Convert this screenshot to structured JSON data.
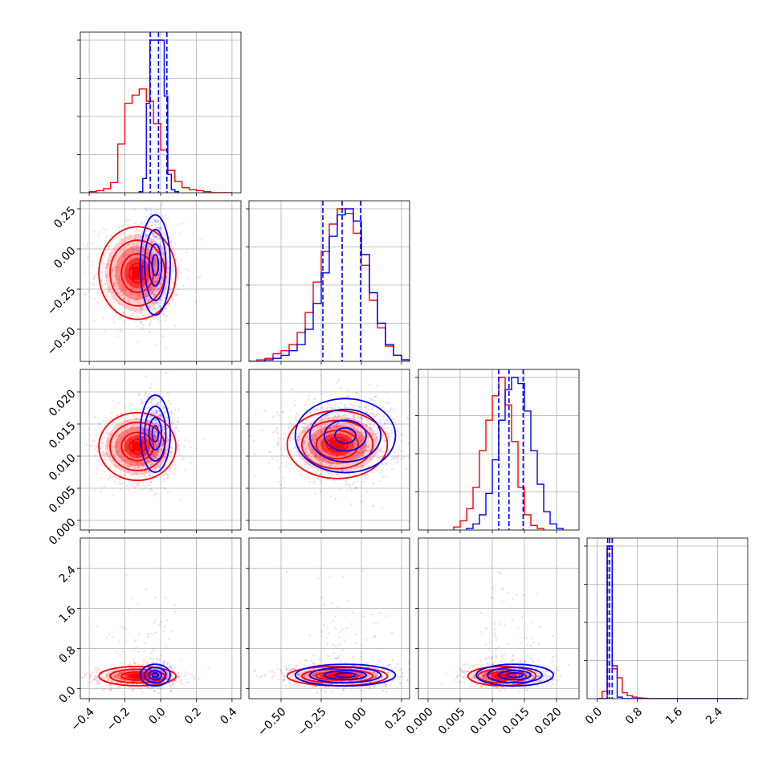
{
  "colors": {
    "red": "#ff0000",
    "blue": "#0000ff",
    "grid": "#b0b0b0"
  },
  "chart_data": {
    "type": "scatter",
    "subtype": "corner-plot",
    "grid": true,
    "series": [
      {
        "color": "#ff0000"
      },
      {
        "color": "#0000ff"
      }
    ],
    "axes_ticks": {
      "p1": {
        "range": [
          -0.45,
          0.45
        ],
        "ticks": [
          -0.4,
          -0.2,
          0.0,
          0.2,
          0.4
        ],
        "tick_labels": [
          "−0.4",
          "−0.2",
          "0.0",
          "0.2",
          "0.4"
        ]
      },
      "p2": {
        "range": [
          -0.7,
          0.3
        ],
        "ticks": [
          -0.5,
          -0.25,
          0.0,
          0.25
        ],
        "tick_labels": [
          "−0.50",
          "−0.25",
          "0.00",
          "0.25"
        ],
        "x_tick_labels": [
          "−0.50",
          "−0.25",
          "0.00",
          "0.25"
        ]
      },
      "p3": {
        "range": [
          -0.0015,
          0.0235
        ],
        "ticks": [
          0.0,
          0.005,
          0.01,
          0.015,
          0.02
        ],
        "tick_labels": [
          "0.000",
          "0.005",
          "0.010",
          "0.015",
          "0.020"
        ]
      },
      "p4": {
        "range": [
          -0.2,
          3.0
        ],
        "ticks": [
          0.0,
          0.8,
          1.6,
          2.4
        ],
        "tick_labels": [
          "0.0",
          "0.8",
          "1.6",
          "2.4"
        ]
      }
    },
    "diagonal": [
      {
        "param": "p1",
        "red": {
          "edges": [
            -0.4,
            -0.36,
            -0.32,
            -0.28,
            -0.24,
            -0.2,
            -0.16,
            -0.12,
            -0.08,
            -0.04,
            0.0,
            0.04,
            0.08,
            0.12,
            0.16,
            0.2,
            0.24,
            0.28,
            0.32,
            0.36,
            0.4
          ],
          "counts": [
            1,
            2,
            4,
            10,
            48,
            88,
            96,
            102,
            90,
            68,
            42,
            22,
            11,
            5,
            3,
            2,
            1,
            0,
            0,
            0
          ]
        },
        "blue": {
          "edges": [
            -0.12,
            -0.1,
            -0.08,
            -0.06,
            -0.04,
            -0.02,
            0.0,
            0.02,
            0.04,
            0.06,
            0.08,
            0.1
          ],
          "counts": [
            1,
            14,
            88,
            150,
            150,
            150,
            150,
            95,
            18,
            3,
            1
          ]
        },
        "quantiles": [
          -0.058,
          -0.012,
          0.035
        ]
      },
      {
        "param": "p2",
        "red": {
          "edges": [
            -0.7,
            -0.65,
            -0.6,
            -0.55,
            -0.5,
            -0.45,
            -0.4,
            -0.35,
            -0.3,
            -0.25,
            -0.2,
            -0.15,
            -0.1,
            -0.05,
            0.0,
            0.05,
            0.1,
            0.15,
            0.2,
            0.25,
            0.3
          ],
          "counts": [
            0,
            1,
            2,
            5,
            7,
            11,
            19,
            32,
            52,
            72,
            90,
            100,
            97,
            84,
            63,
            40,
            22,
            10,
            4,
            1
          ]
        },
        "blue": {
          "edges": [
            -0.7,
            -0.65,
            -0.6,
            -0.55,
            -0.5,
            -0.45,
            -0.4,
            -0.35,
            -0.3,
            -0.25,
            -0.2,
            -0.15,
            -0.1,
            -0.05,
            0.0,
            0.05,
            0.1,
            0.15,
            0.2,
            0.25,
            0.3
          ],
          "counts": [
            0,
            0,
            1,
            2,
            4,
            7,
            11,
            21,
            38,
            58,
            82,
            96,
            100,
            92,
            70,
            45,
            25,
            11,
            4,
            1
          ]
        },
        "quantiles": [
          -0.24,
          -0.12,
          -0.005
        ]
      },
      {
        "param": "p3",
        "red": {
          "edges": [
            0.004,
            0.005,
            0.006,
            0.007,
            0.008,
            0.009,
            0.01,
            0.011,
            0.012,
            0.013,
            0.014,
            0.015,
            0.016,
            0.017,
            0.018
          ],
          "counts": [
            2,
            6,
            14,
            28,
            52,
            72,
            88,
            100,
            82,
            58,
            28,
            10,
            3,
            1
          ]
        },
        "blue": {
          "edges": [
            0.006,
            0.007,
            0.008,
            0.009,
            0.01,
            0.011,
            0.012,
            0.013,
            0.014,
            0.015,
            0.016,
            0.017,
            0.018,
            0.019,
            0.02,
            0.021
          ],
          "counts": [
            1,
            4,
            10,
            24,
            46,
            72,
            92,
            100,
            96,
            78,
            52,
            30,
            12,
            4,
            1
          ]
        },
        "quantiles": [
          0.011,
          0.0126,
          0.0148
        ]
      },
      {
        "param": "p4",
        "red": {
          "edges": [
            0.0,
            0.1,
            0.2,
            0.3,
            0.4,
            0.5,
            0.6,
            0.7,
            0.8,
            0.9,
            1.0,
            2.9
          ],
          "counts": [
            0,
            5,
            100,
            20,
            14,
            4,
            2,
            1,
            0.5,
            0.3,
            0
          ]
        },
        "blue": {
          "edges": [
            0.0,
            0.1,
            0.2,
            0.3,
            0.4,
            0.5,
            2.9
          ],
          "counts": [
            0,
            0,
            102,
            22,
            1,
            0
          ]
        },
        "quantiles": [
          0.21,
          0.25,
          0.3
        ]
      }
    ],
    "pairs": [
      {
        "x": "p1",
        "y": "p2",
        "red_center": [
          -0.13,
          -0.15
        ],
        "red_spread": [
          0.09,
          0.12
        ],
        "blue_center": [
          -0.03,
          -0.1
        ],
        "blue_spread": [
          0.035,
          0.13
        ]
      },
      {
        "x": "p1",
        "y": "p3",
        "red_center": [
          -0.13,
          0.0115
        ],
        "red_spread": [
          0.09,
          0.0022
        ],
        "blue_center": [
          -0.03,
          0.0135
        ],
        "blue_spread": [
          0.035,
          0.0025
        ]
      },
      {
        "x": "p1",
        "y": "p4",
        "red_center": [
          -0.13,
          0.25
        ],
        "red_spread": [
          0.09,
          0.08
        ],
        "blue_center": [
          -0.03,
          0.27
        ],
        "blue_spread": [
          0.035,
          0.09
        ]
      },
      {
        "x": "p2",
        "y": "p3",
        "red_center": [
          -0.15,
          0.0118
        ],
        "red_spread": [
          0.13,
          0.0022
        ],
        "blue_center": [
          -0.1,
          0.0132
        ],
        "blue_spread": [
          0.13,
          0.0024
        ]
      },
      {
        "x": "p2",
        "y": "p4",
        "red_center": [
          -0.15,
          0.25
        ],
        "red_spread": [
          0.13,
          0.08
        ],
        "blue_center": [
          -0.1,
          0.27
        ],
        "blue_spread": [
          0.13,
          0.09
        ]
      },
      {
        "x": "p3",
        "y": "p4",
        "red_center": [
          0.0115,
          0.25
        ],
        "red_spread": [
          0.0022,
          0.08
        ],
        "blue_center": [
          0.0135,
          0.27
        ],
        "blue_spread": [
          0.0025,
          0.09
        ]
      }
    ]
  }
}
